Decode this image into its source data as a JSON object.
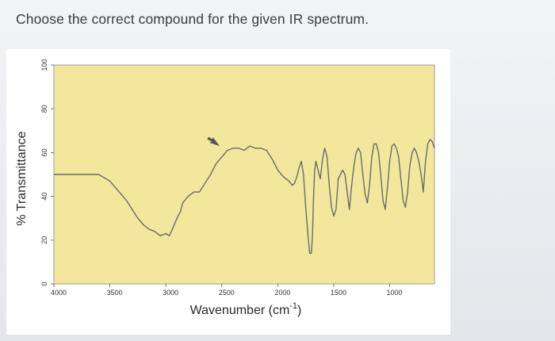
{
  "question": "Choose the correct compound for the given IR spectrum.",
  "chart_data": {
    "type": "line",
    "title": "",
    "xlabel": "Wavenumber (cm",
    "xlabel_sup": "-1",
    "xlabel_close": ")",
    "ylabel": "% Transmittance",
    "xlim": [
      4000,
      600
    ],
    "ylim": [
      0,
      100
    ],
    "x_reversed": true,
    "grid": false,
    "plot_background": "#f2e79c",
    "line_color": "#6b6b6b",
    "x_ticks": [
      4000,
      3500,
      3000,
      2500,
      2000,
      1500,
      1000
    ],
    "x_tick_labels": [
      "4000",
      "3500",
      "3000",
      "2500",
      "2000",
      "1500",
      "1000"
    ],
    "y_ticks": [
      0,
      20,
      40,
      60,
      80,
      100
    ],
    "y_tick_labels": [
      "0",
      "20",
      "40",
      "60",
      "80",
      "100"
    ],
    "series": [
      {
        "x": [
          4000,
          3800,
          3700,
          3600,
          3500,
          3450,
          3400,
          3350,
          3300,
          3250,
          3200,
          3150,
          3100,
          3050,
          3000,
          2970,
          2950,
          2900,
          2870,
          2850,
          2800,
          2750,
          2700,
          2650,
          2600,
          2550,
          2500,
          2450,
          2400,
          2350,
          2300,
          2250,
          2200,
          2150,
          2100,
          2050,
          2000,
          1950,
          1900,
          1870,
          1850,
          1830,
          1810,
          1790,
          1770,
          1750,
          1730,
          1715,
          1700,
          1690,
          1680,
          1670,
          1660,
          1640,
          1620,
          1600,
          1580,
          1560,
          1540,
          1520,
          1500,
          1480,
          1460,
          1440,
          1420,
          1400,
          1380,
          1360,
          1340,
          1320,
          1300,
          1280,
          1260,
          1240,
          1220,
          1200,
          1180,
          1160,
          1140,
          1120,
          1100,
          1080,
          1060,
          1040,
          1020,
          1000,
          980,
          960,
          940,
          920,
          900,
          880,
          860,
          840,
          820,
          800,
          780,
          760,
          740,
          720,
          700,
          680,
          660,
          640,
          620,
          600
        ],
        "y": [
          50,
          50,
          50,
          50,
          47,
          44,
          41,
          38,
          34,
          30,
          27,
          25,
          24,
          22,
          23,
          22,
          24,
          30,
          33,
          37,
          40,
          42,
          42,
          46,
          50,
          55,
          58,
          61,
          62,
          62,
          61,
          63,
          62,
          62,
          61,
          57,
          52,
          49,
          47,
          45,
          46,
          49,
          53,
          56,
          50,
          35,
          22,
          14,
          14,
          22,
          40,
          52,
          56,
          52,
          48,
          57,
          62,
          58,
          45,
          35,
          31,
          34,
          48,
          50,
          52,
          50,
          42,
          34,
          45,
          54,
          60,
          62,
          60,
          50,
          41,
          37,
          45,
          58,
          64,
          64,
          60,
          50,
          38,
          34,
          44,
          56,
          63,
          64,
          62,
          58,
          48,
          38,
          35,
          42,
          54,
          60,
          62,
          60,
          56,
          50,
          42,
          56,
          64,
          66,
          65,
          62
        ]
      }
    ],
    "annotations": [
      {
        "type": "arrow-cursor",
        "x": 2520,
        "y": 63
      }
    ]
  }
}
